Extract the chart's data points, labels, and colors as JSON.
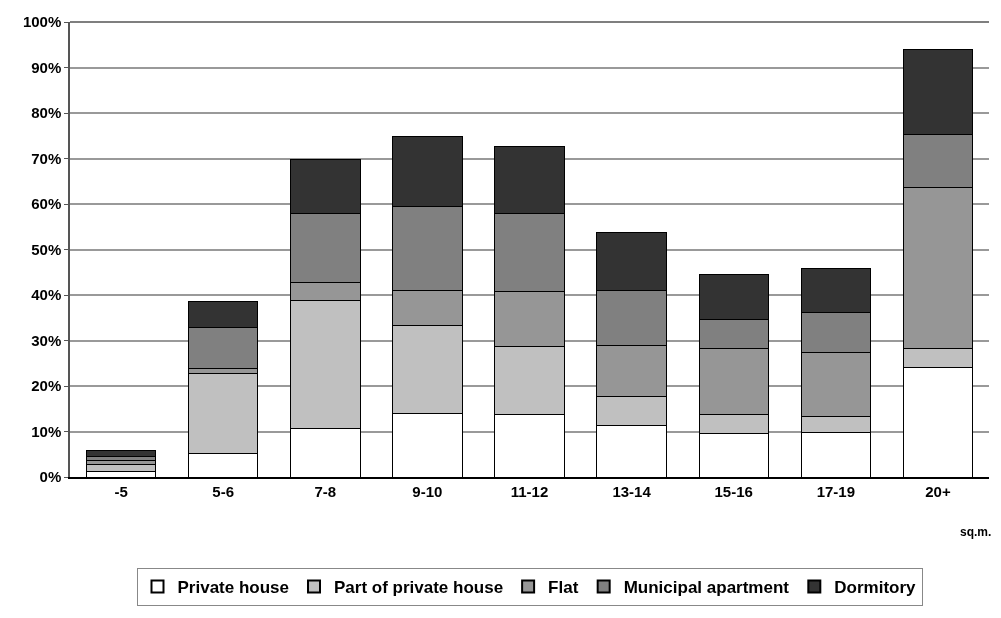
{
  "chart_data": {
    "type": "bar",
    "stacked": true,
    "categories": [
      "-5",
      "5-6",
      "7-8",
      "9-10",
      "11-12",
      "13-14",
      "15-16",
      "17-19",
      "20+"
    ],
    "series": [
      {
        "name": "Private house",
        "color": "#ffffff",
        "values": [
          1.2,
          5.2,
          10.7,
          14,
          13.8,
          11.3,
          9.6,
          9.8,
          24.1
        ]
      },
      {
        "name": "Part of private house",
        "color": "#c0c0c0",
        "values": [
          1.6,
          17.6,
          28.2,
          19.4,
          14.9,
          6.4,
          4.1,
          3.5,
          4.1
        ]
      },
      {
        "name": "Flat",
        "color": "#969696",
        "values": [
          0.8,
          1.0,
          3.8,
          7.6,
          12.1,
          11.3,
          14.5,
          14.1,
          35.4
        ]
      },
      {
        "name": "Municipal apartment",
        "color": "#808080",
        "values": [
          1.0,
          9.1,
          15.3,
          18.4,
          17.1,
          12.1,
          6.5,
          8.7,
          11.6
        ]
      },
      {
        "name": "Dormitory",
        "color": "#333333",
        "values": [
          1.2,
          5.7,
          11.8,
          15.5,
          14.8,
          12.7,
          9.9,
          9.7,
          18.8
        ]
      }
    ],
    "ylim": [
      0,
      100
    ],
    "yticks": [
      {
        "value": 0,
        "label": "0%"
      },
      {
        "value": 10,
        "label": "10%"
      },
      {
        "value": 20,
        "label": "20%"
      },
      {
        "value": 30,
        "label": "30%"
      },
      {
        "value": 40,
        "label": "40%"
      },
      {
        "value": 50,
        "label": "50%"
      },
      {
        "value": 60,
        "label": "60%"
      },
      {
        "value": 70,
        "label": "70%"
      },
      {
        "value": 80,
        "label": "80%"
      },
      {
        "value": 90,
        "label": "90%"
      },
      {
        "value": 100,
        "label": "100%"
      }
    ],
    "annotations": [
      "sq.m."
    ],
    "grid": "y",
    "legend": "bottom"
  }
}
